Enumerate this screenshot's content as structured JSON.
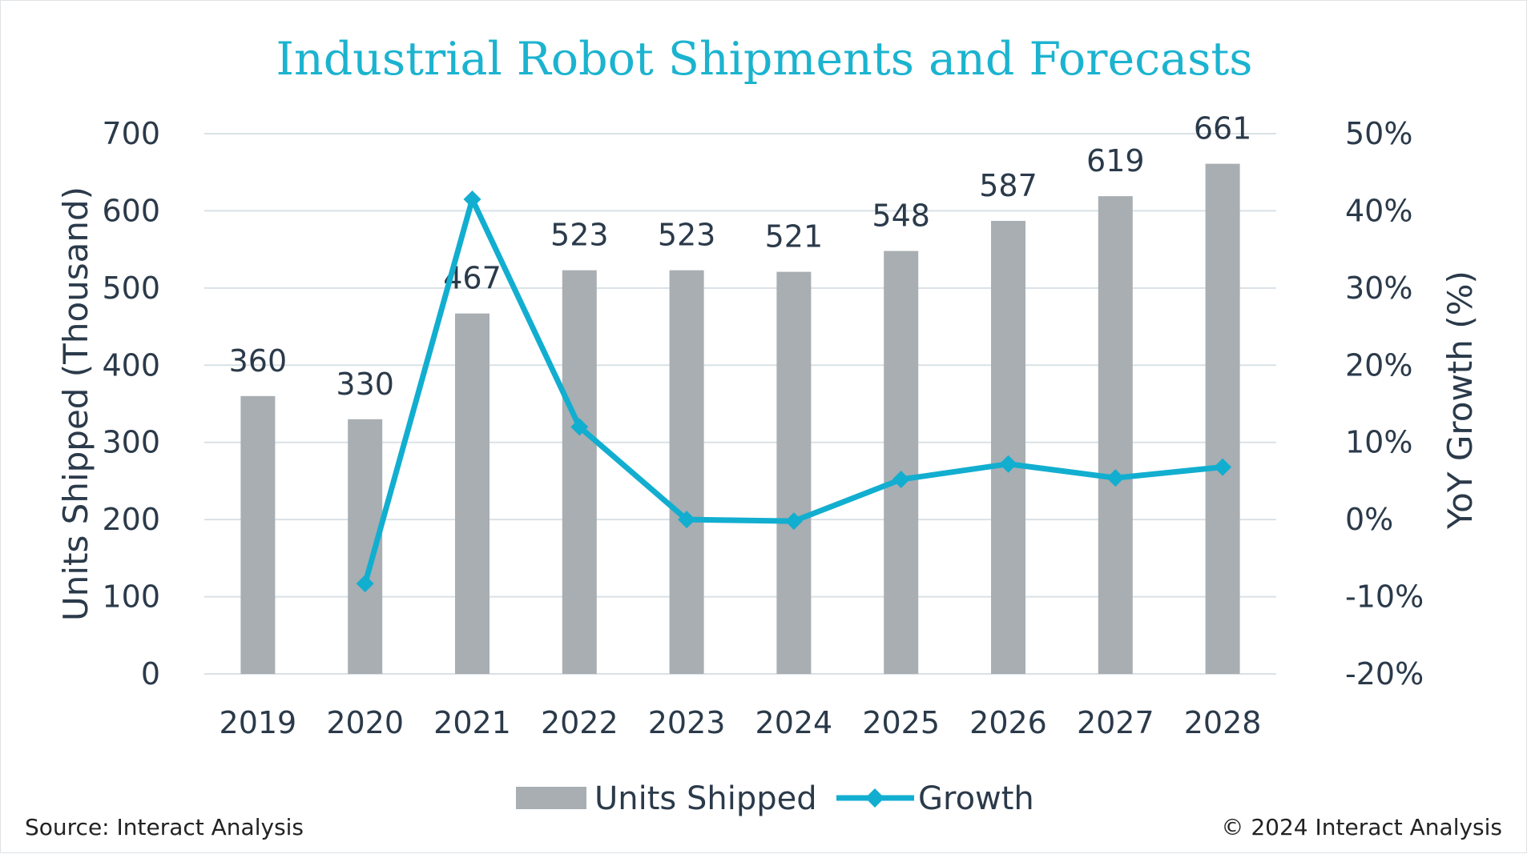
{
  "chart_data": {
    "type": "bar",
    "title": "Industrial Robot Shipments and Forecasts",
    "categories": [
      "2019",
      "2020",
      "2021",
      "2022",
      "2023",
      "2024",
      "2025",
      "2026",
      "2027",
      "2028"
    ],
    "series": [
      {
        "name": "Units Shipped",
        "type": "bar",
        "axis": "left",
        "color": "#a8aeb2",
        "values": [
          360,
          330,
          467,
          523,
          523,
          521,
          548,
          587,
          619,
          661
        ],
        "labels": [
          "360",
          "330",
          "467",
          "523",
          "523",
          "521",
          "548",
          "587",
          "619",
          "661"
        ]
      },
      {
        "name": "Growth",
        "type": "line",
        "axis": "right",
        "color": "#12aed0",
        "marker": "diamond",
        "values": [
          null,
          -8.3,
          41.5,
          12.0,
          0.0,
          -0.2,
          5.2,
          7.2,
          5.4,
          6.8
        ]
      }
    ],
    "ylabel": "Units Shipped (Thousand)",
    "y2label": "YoY Growth (%)",
    "ylim": [
      0,
      700
    ],
    "y_ticks": [
      "0",
      "100",
      "200",
      "300",
      "400",
      "500",
      "600",
      "700"
    ],
    "y2lim": [
      -20,
      50
    ],
    "y2_ticks": [
      "-20%",
      "-10%",
      "0%",
      "10%",
      "20%",
      "30%",
      "40%",
      "50%"
    ],
    "grid": true,
    "legend_position": "bottom",
    "legend": [
      {
        "name": "Units Shipped",
        "symbol": "bar"
      },
      {
        "name": "Growth",
        "symbol": "line-diamond"
      }
    ]
  },
  "footer": {
    "source": "Source: Interact Analysis",
    "copyright": "© 2024 Interact Analysis"
  },
  "colors": {
    "title": "#1bb3cf",
    "axis_text": "#2b3a4a",
    "grid": "#d9e1e6",
    "bar": "#a8aeb2",
    "line": "#12aed0"
  }
}
